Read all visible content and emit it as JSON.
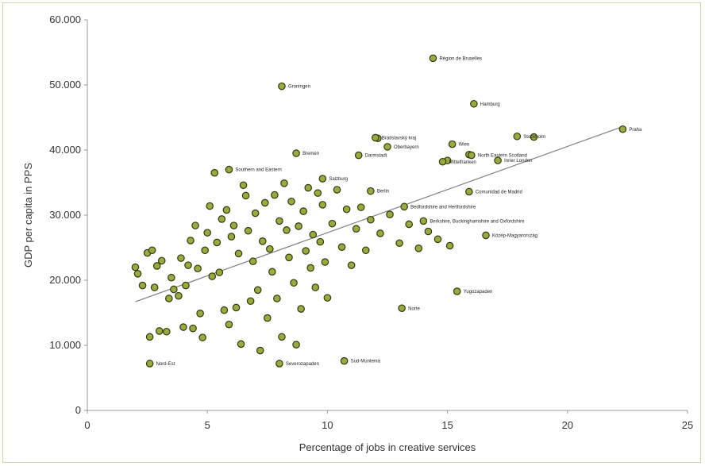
{
  "chart_data": {
    "type": "scatter",
    "title": "",
    "xlabel": "Percentage of jobs in creative services",
    "ylabel": "GDP per capita in PPS",
    "xlim": [
      0,
      25
    ],
    "ylim": [
      0,
      60000
    ],
    "x_ticks": [
      "0",
      "5",
      "10",
      "15",
      "20",
      "25"
    ],
    "y_ticks": [
      "0",
      "10.000",
      "20.000",
      "30.000",
      "40.000",
      "50.000",
      "60.000"
    ],
    "grid": false,
    "legend": "none",
    "marker_fill": "#9aaa3c",
    "marker_edge": "#2f3a12",
    "trendline_color": "#808080",
    "trendline": {
      "x": [
        2.0,
        22.3
      ],
      "y": [
        16700,
        43600
      ]
    },
    "labeled_points": [
      {
        "label": "Région de Bruxelles",
        "x": 14.4,
        "y": 54100
      },
      {
        "label": "Groningen",
        "x": 8.1,
        "y": 49800
      },
      {
        "label": "Hamburg",
        "x": 16.1,
        "y": 47100
      },
      {
        "label": "Praha",
        "x": 22.3,
        "y": 43200
      },
      {
        "label": "Bratislavský kraj",
        "x": 12.0,
        "y": 41900
      },
      {
        "label": "Oberbayern",
        "x": 12.5,
        "y": 40500
      },
      {
        "label": "Wien",
        "x": 15.2,
        "y": 40900
      },
      {
        "label": "Stockholm",
        "x": 17.9,
        "y": 42100
      },
      {
        "label": "Darmstadt",
        "x": 11.3,
        "y": 39200
      },
      {
        "label": "Bremen",
        "x": 8.7,
        "y": 39500
      },
      {
        "label": "North Eastern Scotland",
        "x": 16.0,
        "y": 39200
      },
      {
        "label": "Inner London",
        "x": 17.1,
        "y": 38400
      },
      {
        "label": "Mittelfranken",
        "x": 14.8,
        "y": 38200
      },
      {
        "label": "Southern and Eastern",
        "x": 5.9,
        "y": 37000
      },
      {
        "label": "Salzburg",
        "x": 9.8,
        "y": 35600
      },
      {
        "label": "Comunidad de Madrid",
        "x": 15.9,
        "y": 33600
      },
      {
        "label": "Berlin",
        "x": 11.8,
        "y": 33700
      },
      {
        "label": "Bedfordshire and Hertfordshire",
        "x": 13.2,
        "y": 31300
      },
      {
        "label": "Berkshire, Buckinghamshire and Oxfordshire",
        "x": 14.0,
        "y": 29100
      },
      {
        "label": "Közép-Magyarország",
        "x": 16.6,
        "y": 26900
      },
      {
        "label": "Yugozapaden",
        "x": 15.4,
        "y": 18300
      },
      {
        "label": "Norte",
        "x": 13.1,
        "y": 15700
      },
      {
        "label": "Sud-Muntenia",
        "x": 10.7,
        "y": 7600
      },
      {
        "label": "Severozapaden",
        "x": 8.0,
        "y": 7200
      },
      {
        "label": "Nord-Est",
        "x": 2.6,
        "y": 7200
      }
    ],
    "unlabeled_points": [
      [
        18.6,
        42000
      ],
      [
        15.9,
        39300
      ],
      [
        15.0,
        38400
      ],
      [
        12.1,
        41800
      ],
      [
        2.0,
        22000
      ],
      [
        2.1,
        21000
      ],
      [
        2.3,
        19200
      ],
      [
        2.5,
        24200
      ],
      [
        2.6,
        11300
      ],
      [
        2.7,
        24600
      ],
      [
        2.8,
        18900
      ],
      [
        2.9,
        22200
      ],
      [
        3.0,
        12200
      ],
      [
        3.1,
        23000
      ],
      [
        3.3,
        12100
      ],
      [
        3.4,
        17200
      ],
      [
        3.5,
        20400
      ],
      [
        3.6,
        18600
      ],
      [
        3.8,
        17600
      ],
      [
        3.9,
        23400
      ],
      [
        4.0,
        12800
      ],
      [
        4.1,
        19200
      ],
      [
        4.2,
        22300
      ],
      [
        4.3,
        26100
      ],
      [
        4.4,
        12600
      ],
      [
        4.5,
        28400
      ],
      [
        4.6,
        21800
      ],
      [
        4.7,
        14900
      ],
      [
        4.8,
        11200
      ],
      [
        4.9,
        24600
      ],
      [
        5.0,
        27300
      ],
      [
        5.1,
        31400
      ],
      [
        5.2,
        20600
      ],
      [
        5.3,
        36500
      ],
      [
        5.4,
        25800
      ],
      [
        5.5,
        21200
      ],
      [
        5.6,
        29400
      ],
      [
        5.7,
        15400
      ],
      [
        5.8,
        30800
      ],
      [
        5.9,
        13200
      ],
      [
        6.0,
        26700
      ],
      [
        6.1,
        28400
      ],
      [
        6.2,
        15800
      ],
      [
        6.3,
        24100
      ],
      [
        6.4,
        10200
      ],
      [
        6.5,
        34600
      ],
      [
        6.6,
        33000
      ],
      [
        6.7,
        27600
      ],
      [
        6.8,
        16800
      ],
      [
        6.9,
        22900
      ],
      [
        7.0,
        30300
      ],
      [
        7.1,
        18500
      ],
      [
        7.2,
        9200
      ],
      [
        7.3,
        26000
      ],
      [
        7.4,
        31900
      ],
      [
        7.5,
        14200
      ],
      [
        7.6,
        24800
      ],
      [
        7.7,
        21300
      ],
      [
        7.8,
        33100
      ],
      [
        7.9,
        17200
      ],
      [
        8.0,
        29100
      ],
      [
        8.1,
        11300
      ],
      [
        8.2,
        34900
      ],
      [
        8.3,
        27700
      ],
      [
        8.4,
        23500
      ],
      [
        8.5,
        32100
      ],
      [
        8.6,
        19600
      ],
      [
        8.7,
        10100
      ],
      [
        8.8,
        28300
      ],
      [
        8.9,
        15600
      ],
      [
        9.0,
        30600
      ],
      [
        9.1,
        24500
      ],
      [
        9.2,
        34200
      ],
      [
        9.3,
        21900
      ],
      [
        9.4,
        27000
      ],
      [
        9.5,
        18900
      ],
      [
        9.6,
        33400
      ],
      [
        9.7,
        25900
      ],
      [
        9.8,
        31600
      ],
      [
        9.9,
        22800
      ],
      [
        10.0,
        17300
      ],
      [
        10.2,
        28700
      ],
      [
        10.4,
        33900
      ],
      [
        10.6,
        25100
      ],
      [
        10.8,
        30900
      ],
      [
        11.0,
        22300
      ],
      [
        11.2,
        27900
      ],
      [
        11.4,
        31200
      ],
      [
        11.6,
        24600
      ],
      [
        11.8,
        29300
      ],
      [
        12.2,
        27200
      ],
      [
        12.6,
        30100
      ],
      [
        13.0,
        25700
      ],
      [
        13.4,
        28600
      ],
      [
        13.8,
        24900
      ],
      [
        14.2,
        27500
      ],
      [
        14.6,
        26300
      ],
      [
        15.1,
        25300
      ]
    ]
  }
}
